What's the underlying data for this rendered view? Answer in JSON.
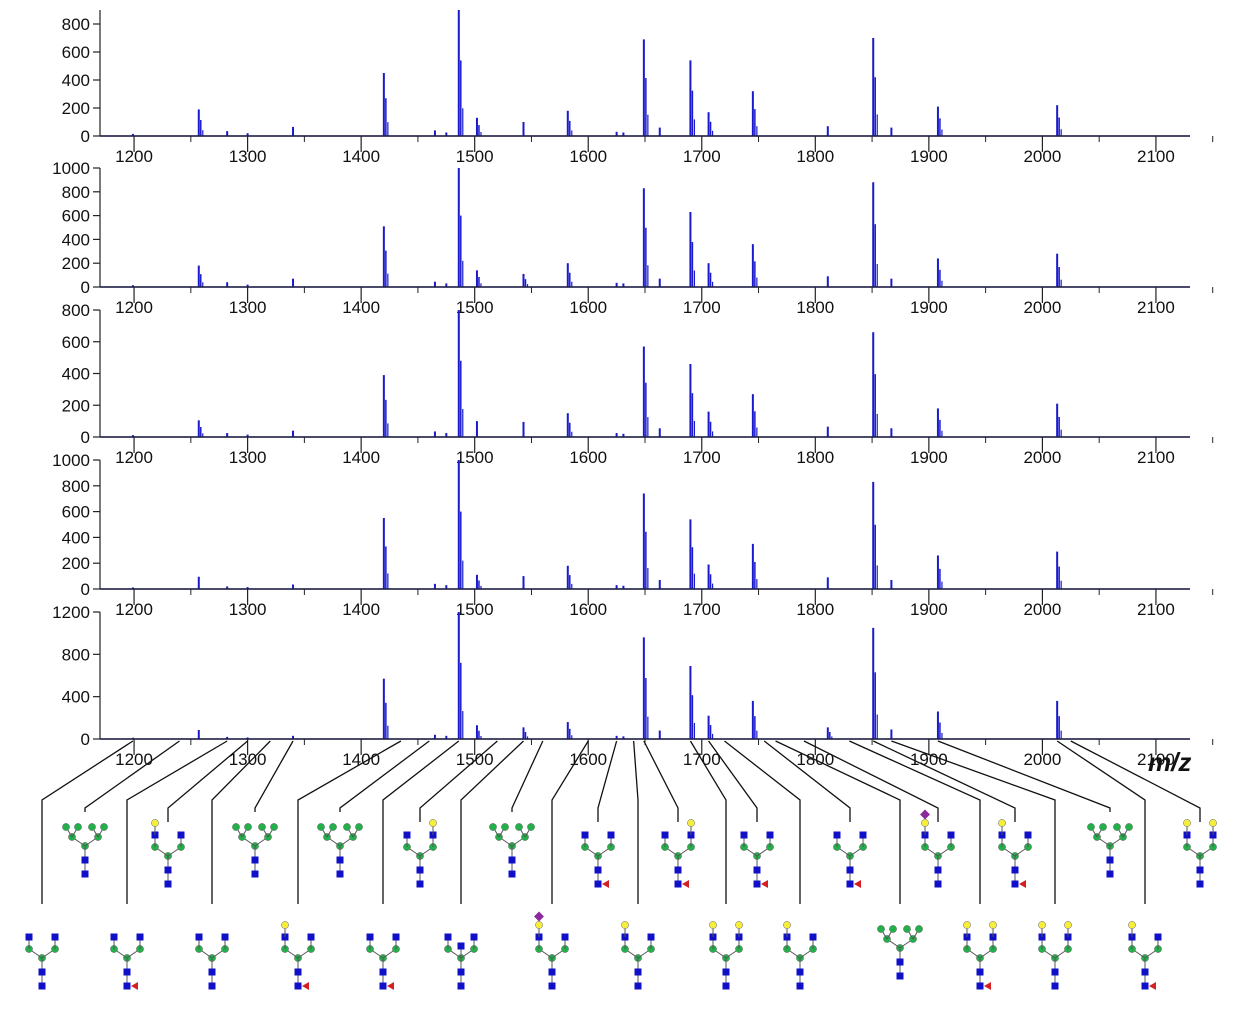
{
  "chart_data": [
    {
      "type": "line",
      "xlim": [
        1170,
        2130
      ],
      "ylim": [
        0,
        900
      ],
      "yticks": [
        0,
        200,
        400,
        600,
        800
      ],
      "xticks": [
        1200,
        1300,
        1400,
        1500,
        1600,
        1700,
        1800,
        1900,
        2000,
        2100
      ],
      "peaks": [
        [
          1199,
          15
        ],
        [
          1257,
          190
        ],
        [
          1282,
          35
        ],
        [
          1300,
          20
        ],
        [
          1340,
          65
        ],
        [
          1420,
          450
        ],
        [
          1465,
          40
        ],
        [
          1475,
          25
        ],
        [
          1486,
          900
        ],
        [
          1502,
          130
        ],
        [
          1543,
          100
        ],
        [
          1582,
          180
        ],
        [
          1625,
          30
        ],
        [
          1631,
          25
        ],
        [
          1649,
          690
        ],
        [
          1663,
          60
        ],
        [
          1690,
          540
        ],
        [
          1706,
          170
        ],
        [
          1745,
          320
        ],
        [
          1811,
          70
        ],
        [
          1851,
          700
        ],
        [
          1867,
          60
        ],
        [
          1908,
          210
        ],
        [
          2013,
          220
        ]
      ]
    },
    {
      "type": "line",
      "xlim": [
        1170,
        2130
      ],
      "ylim": [
        0,
        1000
      ],
      "yticks": [
        0,
        200,
        400,
        600,
        800,
        1000
      ],
      "xticks": [
        1200,
        1300,
        1400,
        1500,
        1600,
        1700,
        1800,
        1900,
        2000,
        2100
      ],
      "peaks": [
        [
          1199,
          15
        ],
        [
          1257,
          180
        ],
        [
          1282,
          40
        ],
        [
          1300,
          20
        ],
        [
          1340,
          70
        ],
        [
          1420,
          510
        ],
        [
          1465,
          45
        ],
        [
          1475,
          30
        ],
        [
          1486,
          1000
        ],
        [
          1502,
          140
        ],
        [
          1543,
          110
        ],
        [
          1582,
          200
        ],
        [
          1625,
          35
        ],
        [
          1631,
          30
        ],
        [
          1649,
          830
        ],
        [
          1663,
          70
        ],
        [
          1690,
          630
        ],
        [
          1706,
          200
        ],
        [
          1745,
          360
        ],
        [
          1811,
          90
        ],
        [
          1851,
          880
        ],
        [
          1867,
          70
        ],
        [
          1908,
          240
        ],
        [
          2013,
          280
        ]
      ]
    },
    {
      "type": "line",
      "xlim": [
        1170,
        2130
      ],
      "ylim": [
        0,
        800
      ],
      "yticks": [
        0,
        200,
        400,
        600,
        800
      ],
      "xticks": [
        1200,
        1300,
        1400,
        1500,
        1600,
        1700,
        1800,
        1900,
        2000,
        2100
      ],
      "peaks": [
        [
          1199,
          12
        ],
        [
          1257,
          105
        ],
        [
          1282,
          25
        ],
        [
          1300,
          15
        ],
        [
          1340,
          40
        ],
        [
          1420,
          390
        ],
        [
          1465,
          35
        ],
        [
          1475,
          25
        ],
        [
          1486,
          800
        ],
        [
          1502,
          100
        ],
        [
          1543,
          95
        ],
        [
          1582,
          150
        ],
        [
          1625,
          25
        ],
        [
          1631,
          20
        ],
        [
          1649,
          570
        ],
        [
          1663,
          55
        ],
        [
          1690,
          460
        ],
        [
          1706,
          160
        ],
        [
          1745,
          270
        ],
        [
          1811,
          65
        ],
        [
          1851,
          660
        ],
        [
          1867,
          55
        ],
        [
          1908,
          180
        ],
        [
          2013,
          210
        ]
      ]
    },
    {
      "type": "line",
      "xlim": [
        1170,
        2130
      ],
      "ylim": [
        0,
        1000
      ],
      "yticks": [
        0,
        200,
        400,
        600,
        800,
        1000
      ],
      "xticks": [
        1200,
        1300,
        1400,
        1500,
        1600,
        1700,
        1800,
        1900,
        2000,
        2100
      ],
      "peaks": [
        [
          1199,
          12
        ],
        [
          1257,
          95
        ],
        [
          1282,
          20
        ],
        [
          1300,
          15
        ],
        [
          1340,
          35
        ],
        [
          1420,
          550
        ],
        [
          1465,
          40
        ],
        [
          1475,
          30
        ],
        [
          1486,
          1000
        ],
        [
          1502,
          110
        ],
        [
          1543,
          100
        ],
        [
          1582,
          180
        ],
        [
          1625,
          30
        ],
        [
          1631,
          25
        ],
        [
          1649,
          740
        ],
        [
          1663,
          70
        ],
        [
          1690,
          540
        ],
        [
          1706,
          190
        ],
        [
          1745,
          350
        ],
        [
          1811,
          90
        ],
        [
          1851,
          830
        ],
        [
          1867,
          70
        ],
        [
          1908,
          260
        ],
        [
          2013,
          290
        ]
      ]
    },
    {
      "type": "line",
      "xlim": [
        1170,
        2130
      ],
      "ylim": [
        0,
        1200
      ],
      "yticks": [
        0,
        400,
        800,
        1200
      ],
      "xticks": [
        1200,
        1300,
        1400,
        1500,
        1600,
        1700,
        1800,
        1900,
        2000,
        2100
      ],
      "xlabel": "m/z",
      "peaks": [
        [
          1199,
          12
        ],
        [
          1257,
          85
        ],
        [
          1282,
          20
        ],
        [
          1300,
          15
        ],
        [
          1340,
          30
        ],
        [
          1420,
          570
        ],
        [
          1465,
          40
        ],
        [
          1475,
          30
        ],
        [
          1486,
          1200
        ],
        [
          1502,
          130
        ],
        [
          1543,
          110
        ],
        [
          1582,
          160
        ],
        [
          1625,
          30
        ],
        [
          1631,
          25
        ],
        [
          1649,
          960
        ],
        [
          1663,
          80
        ],
        [
          1690,
          690
        ],
        [
          1706,
          220
        ],
        [
          1745,
          360
        ],
        [
          1811,
          110
        ],
        [
          1851,
          1050
        ],
        [
          1867,
          90
        ],
        [
          1908,
          260
        ],
        [
          2013,
          360
        ]
      ]
    }
  ],
  "colors": {
    "spectrum": "#1a1acc",
    "axis": "#222222",
    "leader": "#111111",
    "glcnac": "#1010c8",
    "mannose": "#22b04a",
    "galactose": "#f5ee3a",
    "fucose": "#d42020",
    "sialic": "#8b2a9a",
    "bond": "#555555"
  }
}
